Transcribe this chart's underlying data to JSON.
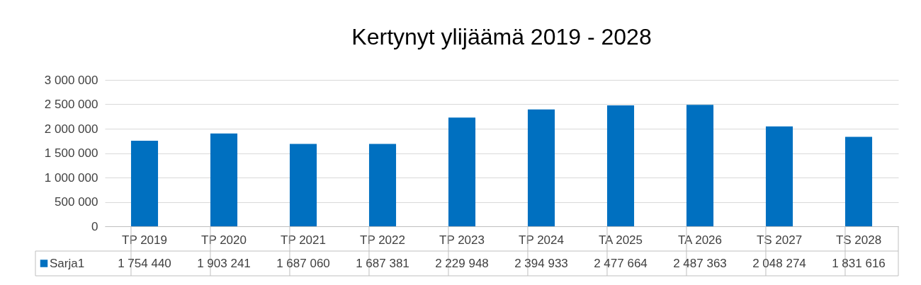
{
  "chart_data": {
    "type": "bar",
    "title": "Kertynyt ylijäämä 2019 - 2028",
    "categories": [
      "TP 2019",
      "TP 2020",
      "TP 2021",
      "TP 2022",
      "TP 2023",
      "TP 2024",
      "TA 2025",
      "TA 2026",
      "TS 2027",
      "TS 2028"
    ],
    "series": [
      {
        "name": "Sarja1",
        "color": "#0070c0",
        "values": [
          1754440,
          1903241,
          1687060,
          1687381,
          2229948,
          2394933,
          2477664,
          2487363,
          2048274,
          1831616
        ],
        "value_labels": [
          "1 754 440",
          "1 903 241",
          "1 687 060",
          "1 687 381",
          "2 229 948",
          "2 394 933",
          "2 477 664",
          "2 487 363",
          "2 048 274",
          "1 831 616"
        ]
      }
    ],
    "ylim": [
      0,
      3000000
    ],
    "yticks": [
      {
        "value": 0,
        "label": "0"
      },
      {
        "value": 500000,
        "label": "500 000"
      },
      {
        "value": 1000000,
        "label": "1 000 000"
      },
      {
        "value": 1500000,
        "label": "1 500 000"
      },
      {
        "value": 2000000,
        "label": "2 000 000"
      },
      {
        "value": 2500000,
        "label": "2 500 000"
      },
      {
        "value": 3000000,
        "label": "3 000 000"
      }
    ],
    "grid": "y",
    "legend": "bottom left"
  }
}
